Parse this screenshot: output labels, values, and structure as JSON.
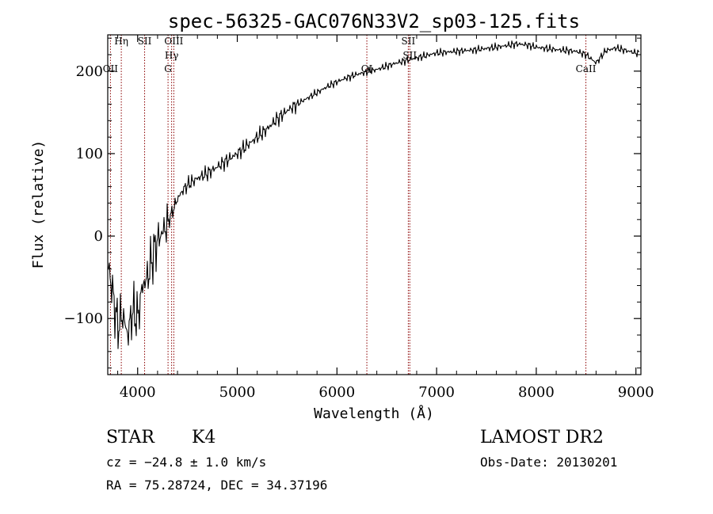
{
  "chart_data": {
    "type": "line",
    "title": "spec-56325-GAC076N33V2_sp03-125.fits",
    "xlabel": "Wavelength (Å)",
    "ylabel": "Flux (relative)",
    "xlim": [
      3700,
      9050
    ],
    "ylim": [
      -168,
      244
    ],
    "x_ticks": [
      4000,
      5000,
      6000,
      7000,
      8000,
      9000
    ],
    "x_tick_labels": [
      "4000",
      "5000",
      "6000",
      "7000",
      "8000",
      "9000"
    ],
    "y_ticks": [
      -100,
      0,
      100,
      200
    ],
    "y_tick_labels": [
      "−100",
      "0",
      "100",
      "200"
    ],
    "series": [
      {
        "name": "spectrum",
        "x": [
          3700,
          3750,
          3800,
          3850,
          3900,
          3950,
          4000,
          4050,
          4100,
          4150,
          4200,
          4250,
          4300,
          4350,
          4400,
          4450,
          4500,
          4600,
          4700,
          4800,
          4900,
          5000,
          5100,
          5200,
          5300,
          5400,
          5500,
          5600,
          5700,
          5800,
          5900,
          6000,
          6100,
          6200,
          6300,
          6400,
          6500,
          6600,
          6700,
          6800,
          6900,
          7000,
          7200,
          7400,
          7600,
          7800,
          7900,
          8000,
          8200,
          8400,
          8500,
          8600,
          8700,
          8800,
          8900,
          9000
        ],
        "y": [
          -30,
          -70,
          -110,
          -95,
          -120,
          -90,
          -100,
          -60,
          -50,
          -25,
          -5,
          5,
          15,
          30,
          45,
          55,
          62,
          70,
          76,
          84,
          92,
          100,
          110,
          120,
          130,
          142,
          152,
          160,
          167,
          174,
          181,
          187,
          192,
          196,
          199,
          202,
          206,
          210,
          213,
          216,
          219,
          222,
          224,
          226,
          229,
          233,
          232,
          229,
          226,
          224,
          220,
          210,
          225,
          228,
          225,
          222
        ]
      }
    ],
    "line_markers": [
      {
        "label": "Hη",
        "wavelength": 3836
      },
      {
        "label": "OII",
        "wavelength": 3727
      },
      {
        "label": "SII",
        "wavelength": 4070
      },
      {
        "label": "OIII",
        "wavelength": 4363
      },
      {
        "label": "Hγ",
        "wavelength": 4341
      },
      {
        "label": "G",
        "wavelength": 4305
      },
      {
        "label": "OI",
        "wavelength": 6300
      },
      {
        "label": "SII",
        "wavelength": 6716
      },
      {
        "label": "SII",
        "wavelength": 6731
      },
      {
        "label": "CaII",
        "wavelength": 8498
      }
    ]
  },
  "info": {
    "class_label": "STAR",
    "subclass": "K4",
    "cz": "cz = −24.8 ± 1.0 km/s",
    "coords": "RA =  75.28724, DEC =  34.37196",
    "survey": "LAMOST DR2",
    "obs_date": "Obs-Date: 20130201"
  },
  "colors": {
    "axis": "#000000",
    "spectrum": "#000000",
    "marker_line": "#8b0000"
  }
}
